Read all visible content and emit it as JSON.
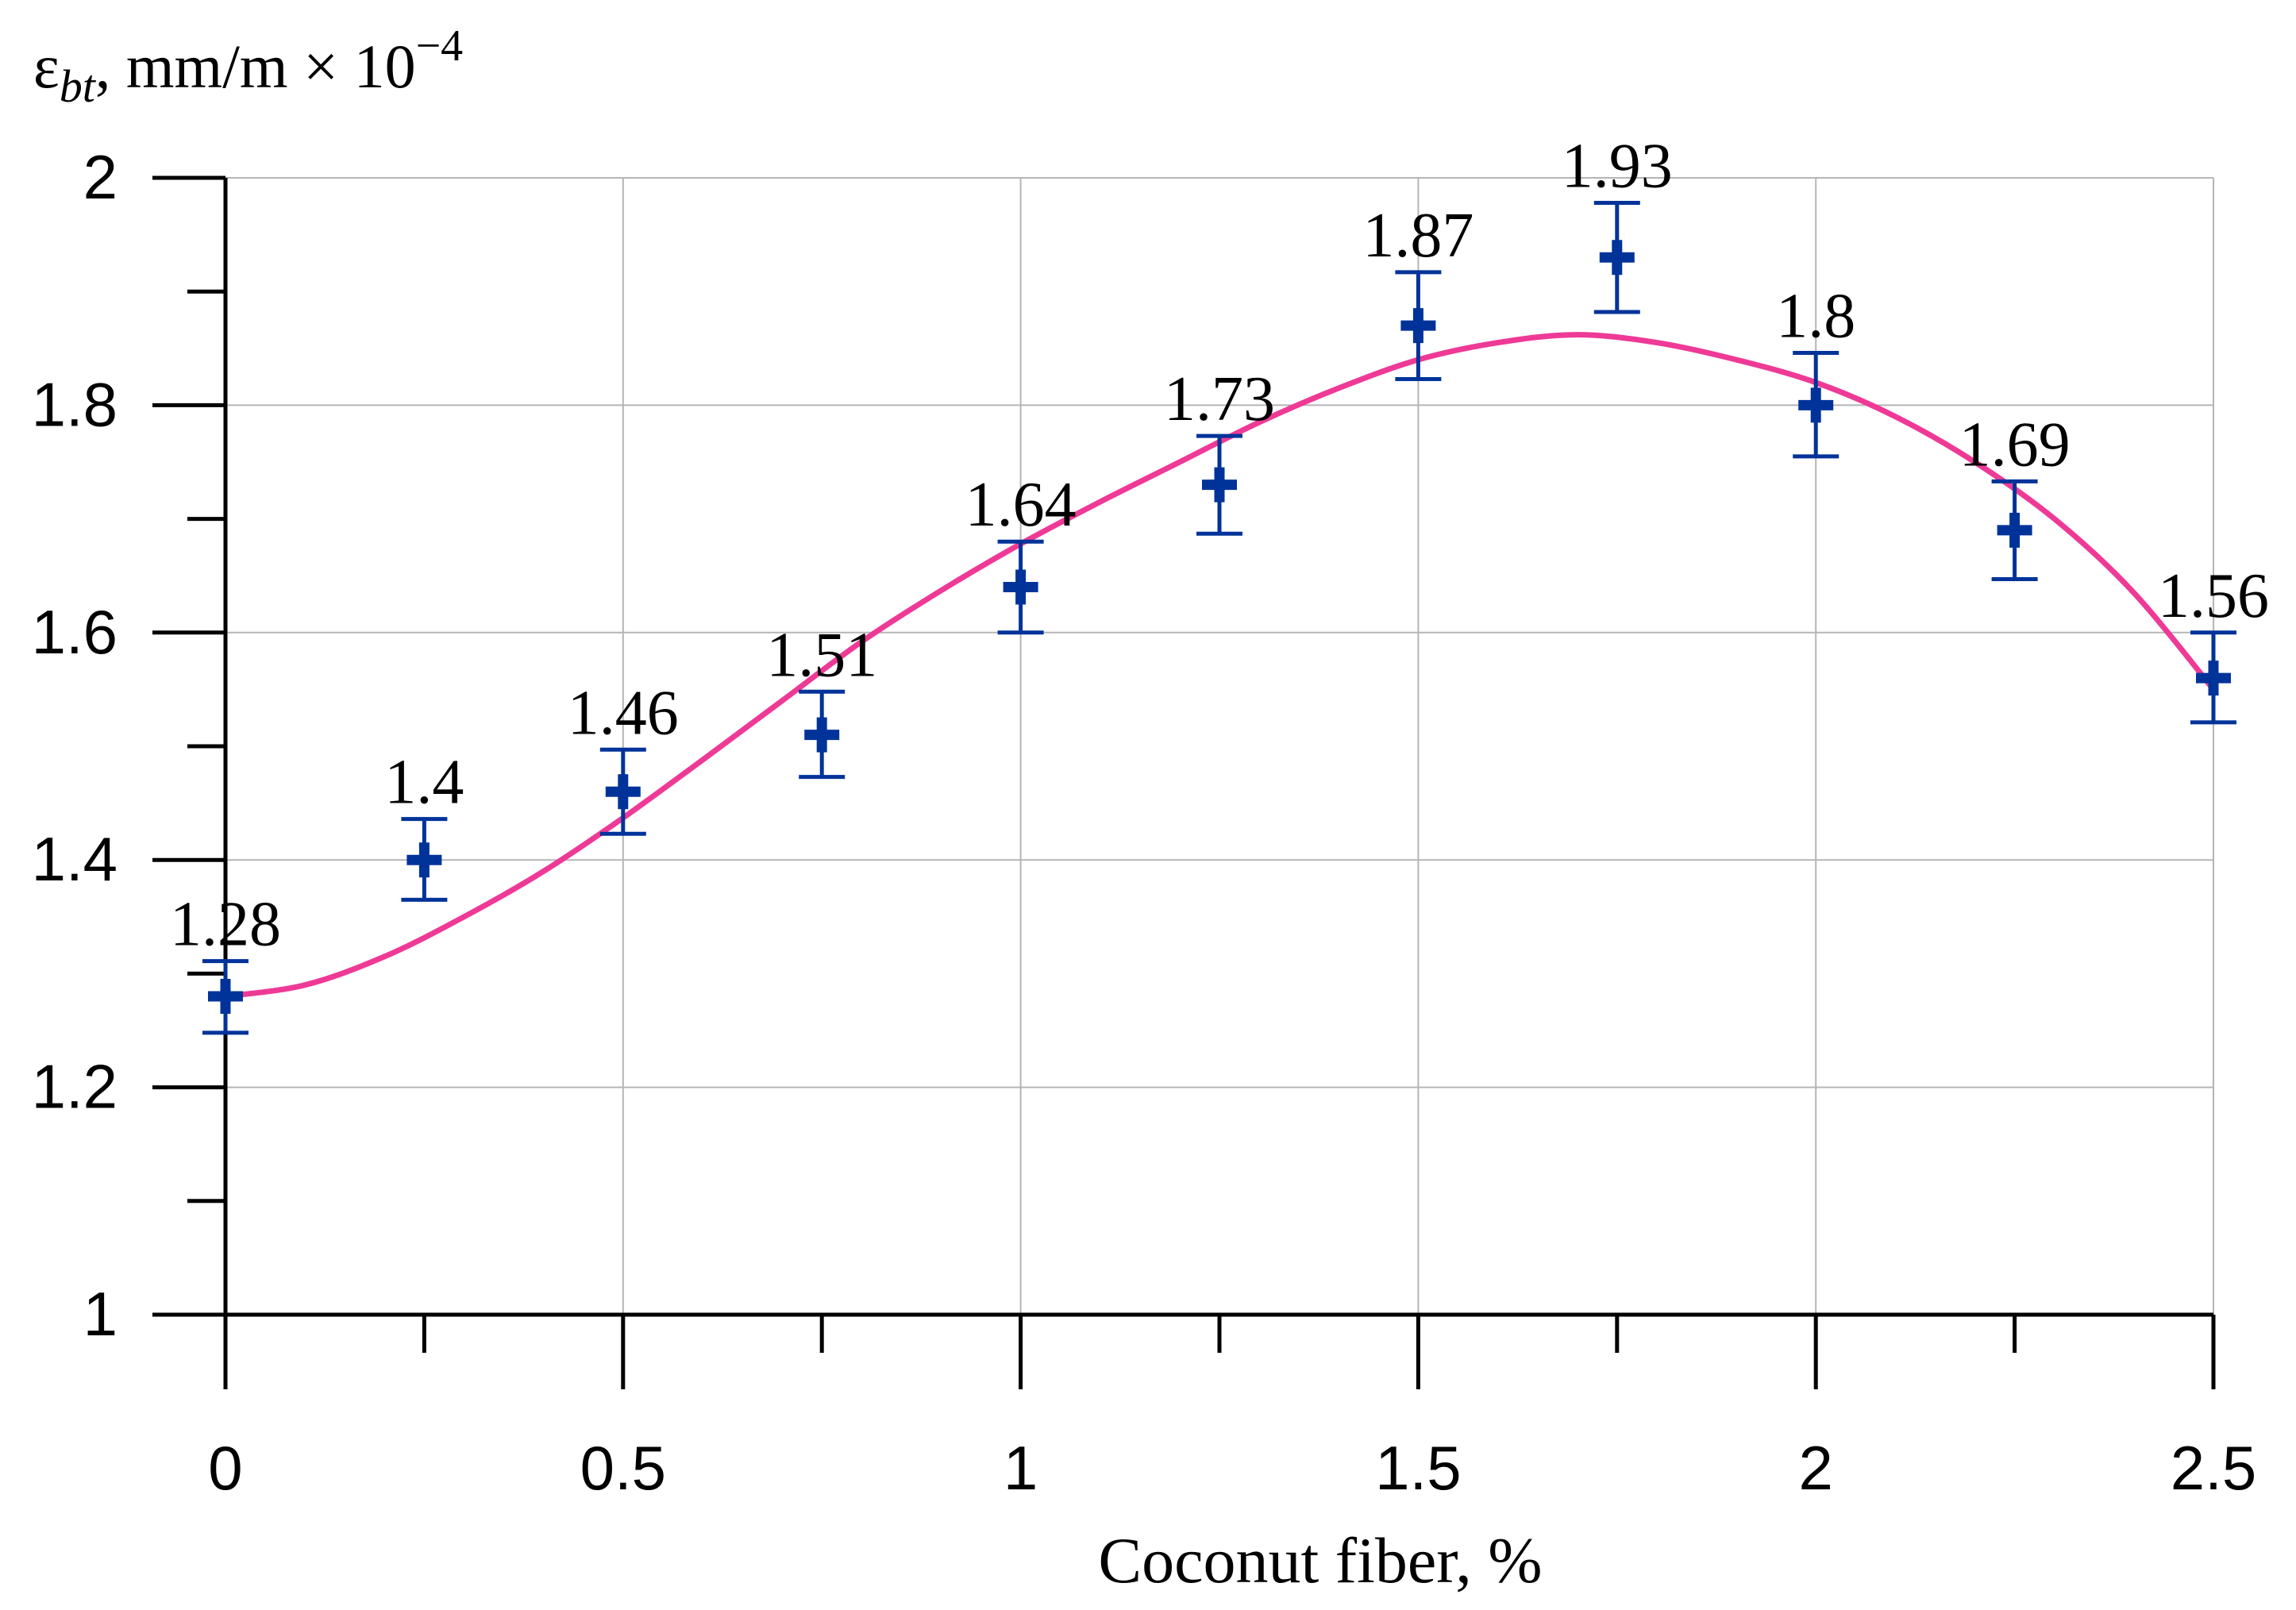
{
  "chart_data": {
    "type": "scatter",
    "title": "",
    "xlabel": "Coconut fiber, %",
    "ylabel_parts": {
      "symbol": "ε",
      "subscript": "bt",
      "unit": ", mm/m × 10",
      "exponent": "−4"
    },
    "xlim": [
      0,
      2.5
    ],
    "ylim": [
      1,
      2
    ],
    "x_ticks": [
      0,
      0.5,
      1,
      1.5,
      2,
      2.5
    ],
    "x_tick_labels": [
      "0",
      "0.5",
      "1",
      "1.5",
      "2",
      "2.5"
    ],
    "x_minor_ticks": [
      0.25,
      0.75,
      1.25,
      1.75,
      2.25
    ],
    "y_ticks": [
      1,
      1.2,
      1.4,
      1.6,
      1.8,
      2
    ],
    "y_tick_labels": [
      "1",
      "1.2",
      "1.4",
      "1.6",
      "1.8",
      "2"
    ],
    "y_minor_ticks": [
      1.1,
      1.3,
      1.5,
      1.7,
      1.9
    ],
    "grid": true,
    "points": {
      "x": [
        0,
        0.25,
        0.5,
        0.75,
        1,
        1.25,
        1.5,
        1.75,
        2,
        2.25,
        2.5
      ],
      "y": [
        1.28,
        1.4,
        1.46,
        1.51,
        1.64,
        1.73,
        1.87,
        1.93,
        1.8,
        1.69,
        1.56
      ],
      "labels": [
        "1.28",
        "1.4",
        "1.46",
        "1.51",
        "1.64",
        "1.73",
        "1.87",
        "1.93",
        "1.8",
        "1.69",
        "1.56"
      ],
      "err_low": [
        1.248,
        1.365,
        1.423,
        1.473,
        1.6,
        1.687,
        1.823,
        1.882,
        1.755,
        1.647,
        1.521
      ],
      "err_high": [
        1.311,
        1.436,
        1.497,
        1.548,
        1.68,
        1.773,
        1.917,
        1.978,
        1.846,
        1.733,
        1.6
      ],
      "color": "#003399"
    },
    "fit_curve": {
      "x": [
        0,
        0.1,
        0.2,
        0.3,
        0.4,
        0.5,
        0.6,
        0.7,
        0.8,
        0.9,
        1.0,
        1.1,
        1.2,
        1.3,
        1.4,
        1.5,
        1.6,
        1.7,
        1.8,
        1.9,
        2.0,
        2.1,
        2.2,
        2.3,
        2.4,
        2.5
      ],
      "y": [
        1.28,
        1.29,
        1.315,
        1.35,
        1.39,
        1.437,
        1.488,
        1.54,
        1.592,
        1.637,
        1.678,
        1.715,
        1.75,
        1.785,
        1.815,
        1.84,
        1.855,
        1.862,
        1.855,
        1.84,
        1.82,
        1.79,
        1.75,
        1.7,
        1.635,
        1.55
      ],
      "color": "#ee3a96"
    }
  }
}
